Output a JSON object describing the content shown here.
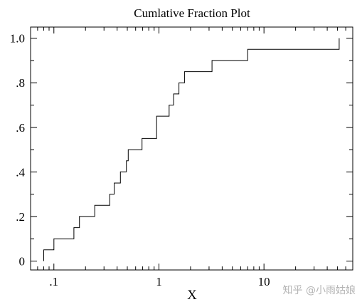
{
  "chart_data": {
    "type": "line",
    "step": true,
    "title": "Cumlative Fraction Plot",
    "xlabel": "X",
    "ylabel": "",
    "xscale": "log",
    "xlim": [
      0.06,
      70
    ],
    "ylim": [
      -0.04,
      1.05
    ],
    "x_ticks": [
      {
        "value": 0.1,
        "label": ".1"
      },
      {
        "value": 1,
        "label": "1"
      },
      {
        "value": 10,
        "label": "10"
      }
    ],
    "y_ticks": [
      {
        "value": 0,
        "label": "0"
      },
      {
        "value": 0.2,
        "label": ".2"
      },
      {
        "value": 0.4,
        "label": ".4"
      },
      {
        "value": 0.6,
        "label": ".6"
      },
      {
        "value": 0.8,
        "label": ".8"
      },
      {
        "value": 1.0,
        "label": "1.0"
      }
    ],
    "grid": false,
    "line_color": "#000000",
    "series": [
      {
        "x": [
          0.08,
          0.1,
          0.155,
          0.175,
          0.245,
          0.34,
          0.375,
          0.43,
          0.49,
          0.51,
          0.69,
          0.95,
          1.25,
          1.38,
          1.55,
          1.75,
          3.2,
          7.0,
          52
        ],
        "y": [
          0.05,
          0.1,
          0.15,
          0.2,
          0.25,
          0.3,
          0.35,
          0.4,
          0.45,
          0.5,
          0.55,
          0.65,
          0.7,
          0.75,
          0.8,
          0.85,
          0.9,
          0.95,
          1.0
        ]
      }
    ]
  },
  "watermark": "知乎 @小雨姑娘"
}
